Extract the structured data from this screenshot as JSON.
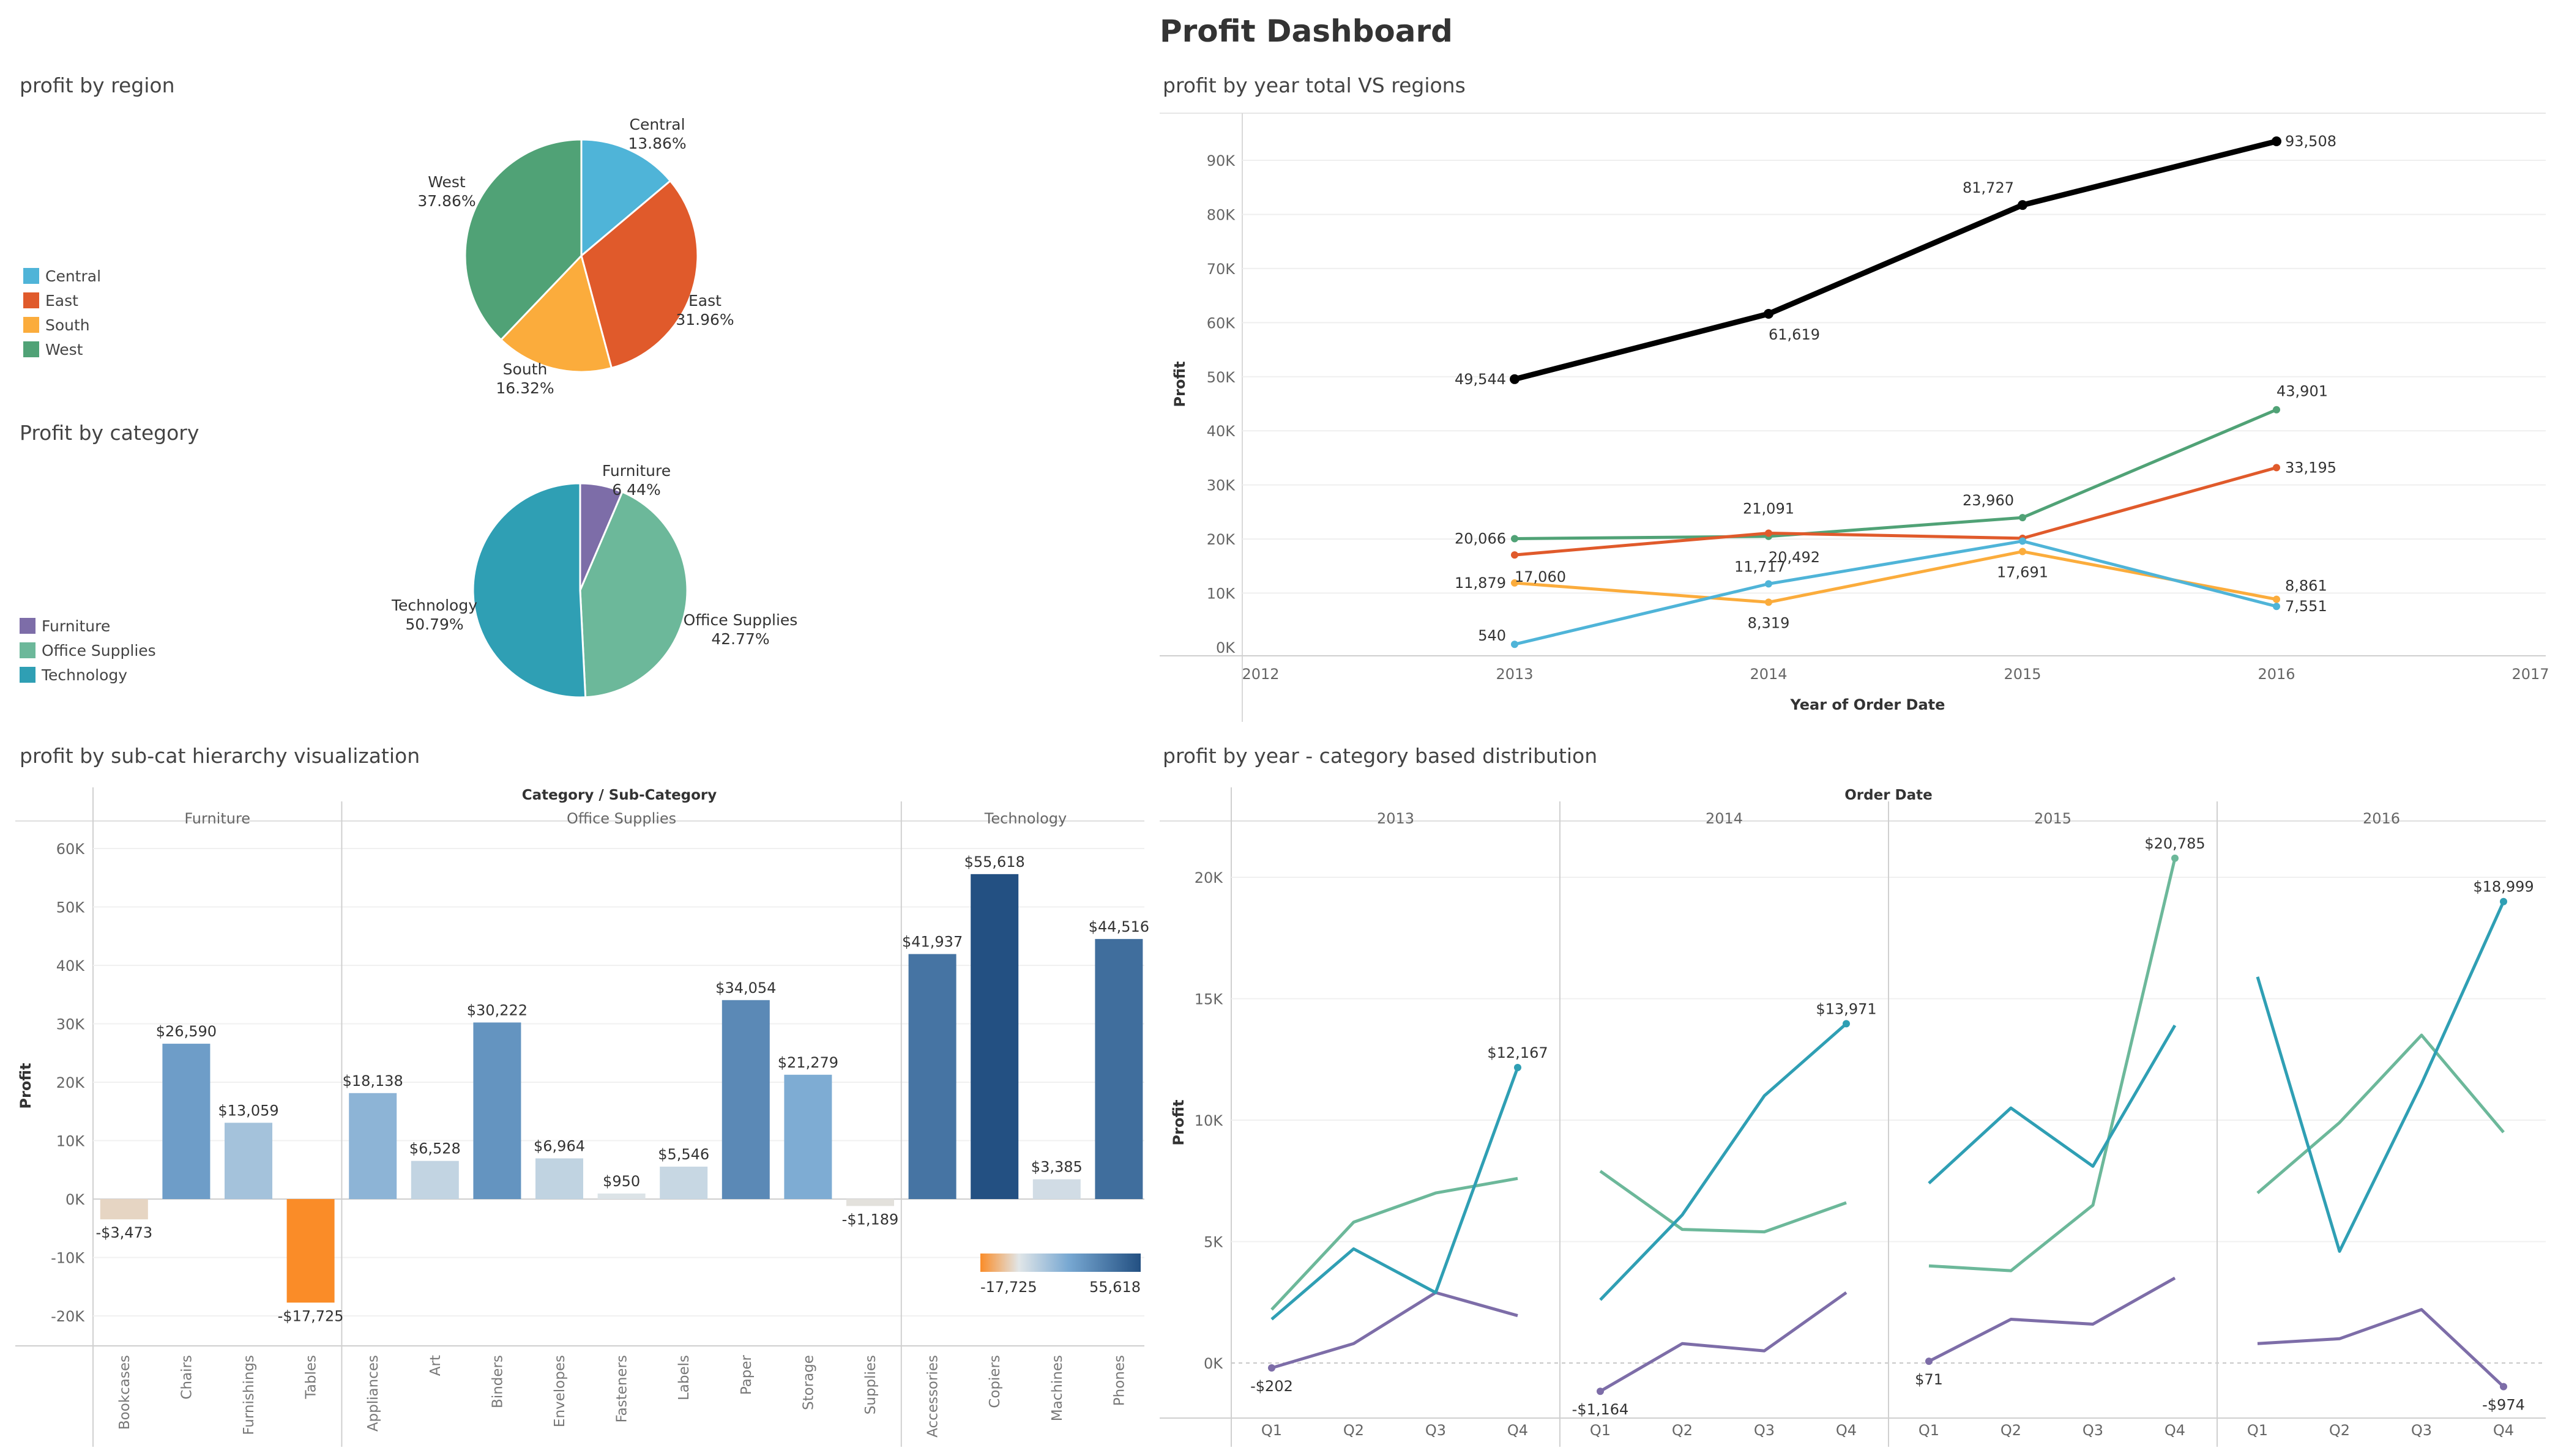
{
  "dashboard": {
    "title": "Profit Dashboard"
  },
  "colors": {
    "regions": {
      "Central": "#4fb4d8",
      "East": "#e05a2b",
      "South": "#fbac3c",
      "West": "#50a276",
      "Total": "#000000"
    },
    "categories": {
      "Furniture": "#7d6da8",
      "Office Supplies": "#6cb89a",
      "Technology": "#2f9fb4"
    }
  },
  "panels": {
    "region_pie": {
      "title": "profit by region"
    },
    "category_pie": {
      "title": "Profit by category"
    },
    "year_regions": {
      "title": "profit by year total VS regions"
    },
    "subcat": {
      "title": "profit by sub-cat hierarchy visualization"
    },
    "year_category": {
      "title": "profit by year - category based distribution"
    }
  },
  "chart_data": [
    {
      "id": "region_pie",
      "type": "pie",
      "labels": [
        "Central",
        "East",
        "South",
        "West"
      ],
      "values": [
        13.86,
        31.96,
        16.32,
        37.86
      ],
      "value_labels": [
        "13.86%",
        "31.96%",
        "16.32%",
        "37.86%"
      ],
      "legend": [
        "Central",
        "East",
        "South",
        "West"
      ],
      "legend_position": "left"
    },
    {
      "id": "category_pie",
      "type": "pie",
      "labels": [
        "Furniture",
        "Office Supplies",
        "Technology"
      ],
      "values": [
        6.44,
        42.77,
        50.79
      ],
      "value_labels": [
        "6.44%",
        "42.77%",
        "50.79%"
      ],
      "legend": [
        "Furniture",
        "Office Supplies",
        "Technology"
      ],
      "legend_position": "left"
    },
    {
      "id": "year_regions",
      "type": "line",
      "xlabel": "Year of Order Date",
      "ylabel": "Profit",
      "xlim": [
        2012,
        2017
      ],
      "ylim": [
        0,
        95000
      ],
      "x_ticks": [
        "2012",
        "2013",
        "2014",
        "2015",
        "2016",
        "2017"
      ],
      "y_ticks": [
        "0K",
        "10K",
        "20K",
        "30K",
        "40K",
        "50K",
        "60K",
        "70K",
        "80K",
        "90K"
      ],
      "x": [
        2013,
        2014,
        2015,
        2016
      ],
      "series": [
        {
          "key": "Total",
          "values": [
            49544,
            61619,
            81727,
            93508
          ],
          "labels": [
            "49,544",
            "61,619",
            "81,727",
            "93,508"
          ]
        },
        {
          "key": "West",
          "values": [
            20066,
            20492,
            23960,
            43901
          ],
          "labels": [
            "20,066",
            "",
            "23,960",
            "43,901"
          ]
        },
        {
          "key": "East",
          "values": [
            17060,
            21091,
            20141,
            33195
          ],
          "labels": [
            "",
            "21,091",
            "",
            "33,195"
          ]
        },
        {
          "key": "South",
          "values": [
            11879,
            8319,
            17691,
            8861
          ],
          "labels": [
            "11,879",
            "8,319",
            "17,691",
            "8,861"
          ]
        },
        {
          "key": "Central",
          "values": [
            540,
            11717,
            19612,
            7551
          ],
          "labels": [
            "540",
            "11,717",
            "",
            "7,551"
          ]
        }
      ],
      "extra_labels": [
        "17,060",
        "20,492"
      ],
      "grid": true
    },
    {
      "id": "subcat",
      "type": "bar",
      "header": "Category / Sub-Category",
      "ylabel": "Profit",
      "ylim": [
        -25000,
        62000
      ],
      "y_ticks": [
        "-20K",
        "-10K",
        "0K",
        "10K",
        "20K",
        "30K",
        "40K",
        "50K",
        "60K"
      ],
      "groups": [
        {
          "name": "Furniture",
          "categories": [
            "Bookcases",
            "Chairs",
            "Furnishings",
            "Tables"
          ],
          "values": [
            -3473,
            26590,
            13059,
            -17725
          ],
          "labels": [
            "-$3,473",
            "$26,590",
            "$13,059",
            "-$17,725"
          ]
        },
        {
          "name": "Office Supplies",
          "categories": [
            "Appliances",
            "Art",
            "Binders",
            "Envelopes",
            "Fasteners",
            "Labels",
            "Paper",
            "Storage",
            "Supplies"
          ],
          "values": [
            18138,
            6528,
            30222,
            6964,
            950,
            5546,
            34054,
            21279,
            -1189
          ],
          "labels": [
            "$18,138",
            "$6,528",
            "$30,222",
            "$6,964",
            "$950",
            "$5,546",
            "$34,054",
            "$21,279",
            "-$1,189"
          ]
        },
        {
          "name": "Technology",
          "categories": [
            "Accessories",
            "Copiers",
            "Machines",
            "Phones"
          ],
          "values": [
            41937,
            55618,
            3385,
            44516
          ],
          "labels": [
            "$41,937",
            "$55,618",
            "$3,385",
            "$44,516"
          ]
        }
      ],
      "color_scale": {
        "min": -17725,
        "max": 55618,
        "min_label": "-17,725",
        "max_label": "55,618"
      }
    },
    {
      "id": "year_category",
      "type": "line",
      "header": "Order Date",
      "ylabel": "Profit",
      "ylim": [
        -2500,
        22000
      ],
      "y_ticks": [
        "0K",
        "5K",
        "10K",
        "15K",
        "20K"
      ],
      "x_ticks": [
        "Q1",
        "Q2",
        "Q3",
        "Q4"
      ],
      "panels": [
        {
          "year": "2013",
          "series": [
            {
              "key": "Furniture",
              "values": [
                -202,
                800,
                2900,
                1950
              ]
            },
            {
              "key": "Office Supplies",
              "values": [
                2200,
                5800,
                7000,
                7600
              ]
            },
            {
              "key": "Technology",
              "values": [
                1800,
                4700,
                2900,
                12167
              ]
            }
          ],
          "labels": [
            {
              "series": "Furniture",
              "q": 0,
              "text": "-$202"
            },
            {
              "series": "Technology",
              "q": 3,
              "text": "$12,167"
            }
          ]
        },
        {
          "year": "2014",
          "series": [
            {
              "key": "Furniture",
              "values": [
                -1164,
                800,
                500,
                2900
              ]
            },
            {
              "key": "Office Supplies",
              "values": [
                7900,
                5500,
                5400,
                6600
              ]
            },
            {
              "key": "Technology",
              "values": [
                2600,
                6100,
                11000,
                13971
              ]
            }
          ],
          "labels": [
            {
              "series": "Furniture",
              "q": 0,
              "text": "-$1,164"
            },
            {
              "series": "Technology",
              "q": 3,
              "text": "$13,971"
            }
          ]
        },
        {
          "year": "2015",
          "series": [
            {
              "key": "Furniture",
              "values": [
                71,
                1800,
                1600,
                3500
              ]
            },
            {
              "key": "Office Supplies",
              "values": [
                4000,
                3800,
                6500,
                20785
              ]
            },
            {
              "key": "Technology",
              "values": [
                7400,
                10500,
                8100,
                13900
              ]
            }
          ],
          "labels": [
            {
              "series": "Furniture",
              "q": 0,
              "text": "$71"
            },
            {
              "series": "Office Supplies",
              "q": 3,
              "text": "$20,785"
            }
          ]
        },
        {
          "year": "2016",
          "series": [
            {
              "key": "Furniture",
              "values": [
                800,
                1000,
                2200,
                -974
              ]
            },
            {
              "key": "Office Supplies",
              "values": [
                7000,
                9900,
                13500,
                9500
              ]
            },
            {
              "key": "Technology",
              "values": [
                15900,
                4600,
                11500,
                18999
              ]
            }
          ],
          "labels": [
            {
              "series": "Furniture",
              "q": 3,
              "text": "-$974"
            },
            {
              "series": "Technology",
              "q": 3,
              "text": "$18,999"
            }
          ]
        }
      ]
    }
  ]
}
